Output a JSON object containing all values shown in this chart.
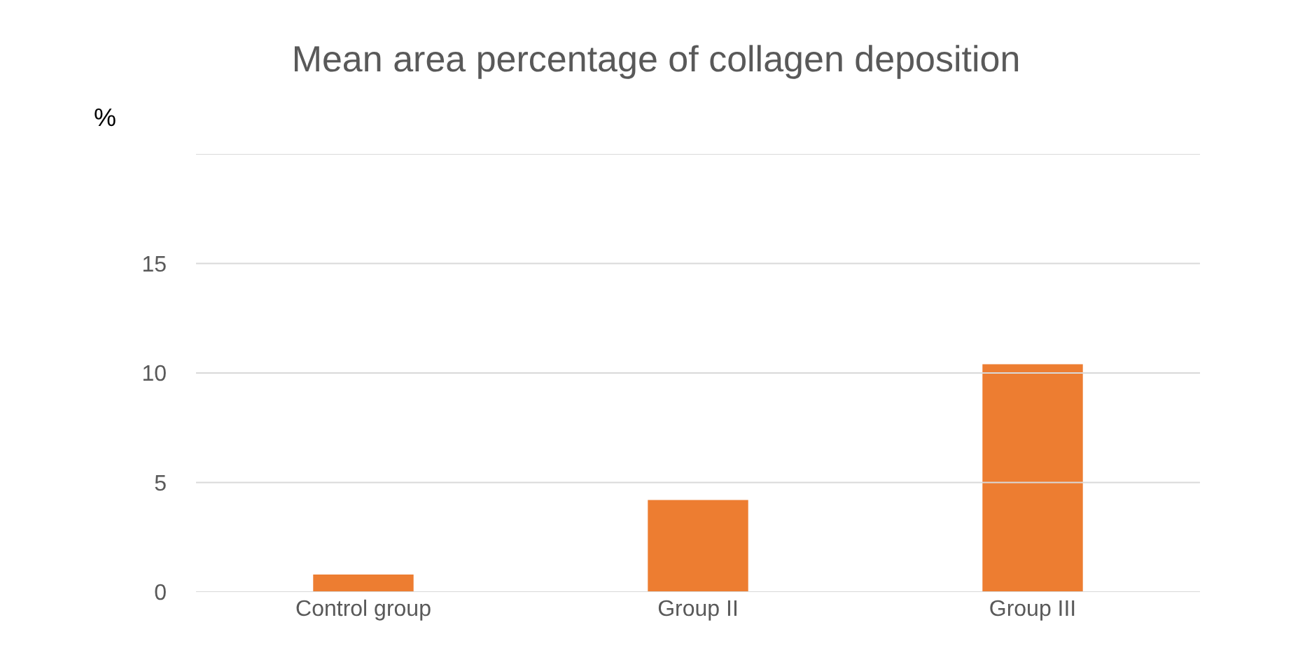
{
  "chart_data": {
    "type": "bar",
    "title": "Mean area percentage of collagen deposition",
    "ylabel": "%",
    "categories": [
      "Control group",
      "Group II",
      "Group III"
    ],
    "values": [
      0.8,
      4.2,
      10.4
    ],
    "color": "#ed7d31",
    "ylim": [
      0,
      20
    ],
    "yticks": [
      0,
      5,
      10,
      15,
      {
        "value": 20,
        "label": null
      }
    ],
    "grid": "y"
  }
}
